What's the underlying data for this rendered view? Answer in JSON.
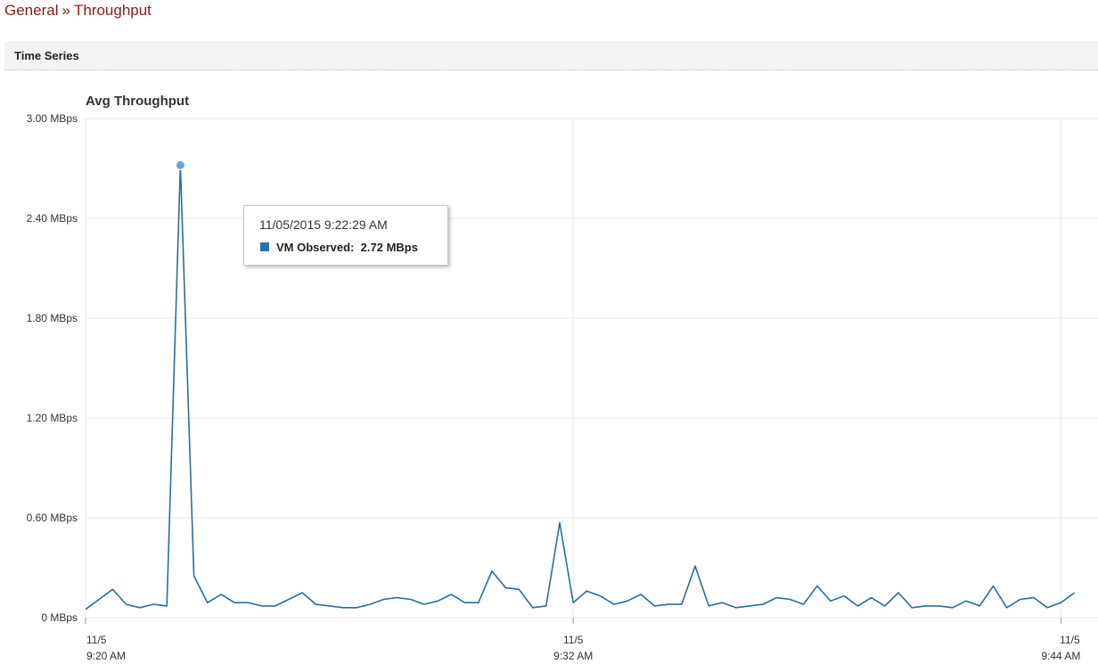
{
  "breadcrumb": {
    "parent": "General",
    "separator": "»",
    "current": "Throughput"
  },
  "section": {
    "title": "Time Series"
  },
  "colors": {
    "line": "#2a6f97",
    "marker": "#6fa3cc",
    "swatch": "#2f6fae",
    "grid": "#e8e8e8",
    "breadcrumb": "#8b1a1a"
  },
  "tooltip": {
    "date": "11/05/2015 9:22:29 AM",
    "series": "VM Observed:",
    "value": "2.72 MBps"
  },
  "chart_data": {
    "type": "line",
    "title": "Avg Throughput",
    "ylim": [
      0,
      3.0
    ],
    "y_ticks": [
      "0 MBps",
      "0.60 MBps",
      "1.20 MBps",
      "1.80 MBps",
      "2.40 MBps",
      "3.00 MBps"
    ],
    "x_ticks": [
      {
        "date": "11/5",
        "time": "9:20 AM"
      },
      {
        "date": "11/5",
        "time": "9:32 AM"
      },
      {
        "date": "11/5",
        "time": "9:44 AM"
      }
    ],
    "grid": true,
    "highlight_index": 7,
    "series": [
      {
        "values": [
          0.05,
          0.11,
          0.17,
          0.08,
          0.06,
          0.08,
          0.07,
          2.72,
          0.25,
          0.09,
          0.14,
          0.09,
          0.09,
          0.07,
          0.07,
          0.11,
          0.15,
          0.08,
          0.07,
          0.06,
          0.06,
          0.08,
          0.11,
          0.12,
          0.11,
          0.08,
          0.1,
          0.14,
          0.09,
          0.09,
          0.28,
          0.18,
          0.17,
          0.06,
          0.07,
          0.57,
          0.09,
          0.16,
          0.13,
          0.08,
          0.1,
          0.14,
          0.07,
          0.08,
          0.08,
          0.31,
          0.07,
          0.09,
          0.06,
          0.07,
          0.08,
          0.12,
          0.11,
          0.08,
          0.19,
          0.1,
          0.13,
          0.07,
          0.12,
          0.07,
          0.15,
          0.06,
          0.07,
          0.07,
          0.06,
          0.1,
          0.07,
          0.19,
          0.06,
          0.11,
          0.12,
          0.06,
          0.09,
          0.15
        ]
      }
    ]
  }
}
